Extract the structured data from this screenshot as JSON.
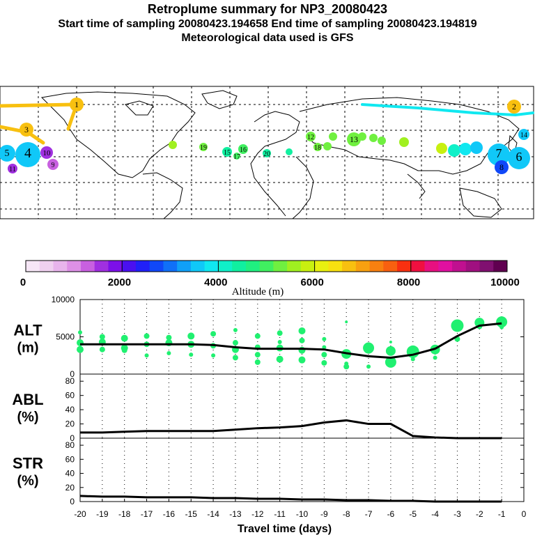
{
  "header": {
    "title": "Retroplume summary for NP3_20080423",
    "sampling": "Start time of sampling 20080423.194658     End time of sampling 20080423.194819",
    "met": "Meteorological data used is GFS"
  },
  "colorbar": {
    "ticks": [
      "0",
      "2000",
      "4000",
      "6000",
      "8000",
      "10000"
    ],
    "label": "Altitude (m)",
    "colors": [
      "#f6e6f6",
      "#f0d0f0",
      "#e8b4ec",
      "#dd90e6",
      "#c860e0",
      "#a030e0",
      "#7c10e8",
      "#4a10f0",
      "#2020f8",
      "#1048f8",
      "#1070f8",
      "#10a0f8",
      "#10c8f8",
      "#10e8f0",
      "#10f0c8",
      "#10f0a0",
      "#20f080",
      "#40f060",
      "#70f040",
      "#a0f020",
      "#c8f010",
      "#e8f010",
      "#f8e010",
      "#f8c010",
      "#f8a010",
      "#f88010",
      "#f86010",
      "#f83010",
      "#f01040",
      "#e81080",
      "#e010a0",
      "#c01090",
      "#a01080",
      "#801070",
      "#600050"
    ]
  },
  "map": {
    "labels": [
      {
        "t": "1",
        "c": "#f8c010"
      },
      {
        "t": "2",
        "c": "#f8c010"
      },
      {
        "t": "3",
        "c": "#f8c010"
      },
      {
        "t": "4",
        "c": "#10c8f8"
      },
      {
        "t": "5",
        "c": "#10c8f8"
      },
      {
        "t": "6",
        "c": "#10c8f8"
      },
      {
        "t": "7",
        "c": "#10c8f8"
      },
      {
        "t": "8",
        "c": "#1048f8"
      },
      {
        "t": "9",
        "c": "#c860e0"
      },
      {
        "t": "10",
        "c": "#a030e0"
      },
      {
        "t": "11",
        "c": "#a030e0"
      },
      {
        "t": "12",
        "c": "#70f040"
      },
      {
        "t": "13",
        "c": "#70f040"
      },
      {
        "t": "14",
        "c": "#10c8f8"
      },
      {
        "t": "15",
        "c": "#10f0a0"
      },
      {
        "t": "16",
        "c": "#40f060"
      },
      {
        "t": "17",
        "c": "#40f060"
      },
      {
        "t": "18",
        "c": "#70f040"
      },
      {
        "t": "19",
        "c": "#70f040"
      },
      {
        "t": "20",
        "c": "#10f0a0"
      }
    ]
  },
  "chart_data": [
    {
      "type": "line",
      "panel": "ALT",
      "ylabel": "ALT",
      "yunit": "(m)",
      "ylim": [
        0,
        10000
      ],
      "yticks": [
        "0",
        "5000",
        "10000"
      ],
      "x": [
        -20,
        -19,
        -18,
        -17,
        -16,
        -15,
        -14,
        -13,
        -12,
        -11,
        -10,
        -9,
        -8,
        -7,
        -6,
        -5,
        -4,
        -3,
        -2,
        -1
      ],
      "series": [
        {
          "name": "mean altitude",
          "values": [
            4000,
            4000,
            4000,
            4000,
            4000,
            4000,
            3900,
            3600,
            3400,
            3400,
            3400,
            3300,
            2800,
            2400,
            2200,
            2600,
            3400,
            5100,
            6500,
            6800
          ]
        }
      ],
      "scatter": [
        {
          "x": -20,
          "y": 5600,
          "s": 3
        },
        {
          "x": -20,
          "y": 4200,
          "s": 5
        },
        {
          "x": -20,
          "y": 3300,
          "s": 5
        },
        {
          "x": -19,
          "y": 5000,
          "s": 4
        },
        {
          "x": -19,
          "y": 4300,
          "s": 5
        },
        {
          "x": -19,
          "y": 3300,
          "s": 4
        },
        {
          "x": -18,
          "y": 4800,
          "s": 5
        },
        {
          "x": -18,
          "y": 3500,
          "s": 5
        },
        {
          "x": -18,
          "y": 3200,
          "s": 4
        },
        {
          "x": -17,
          "y": 5100,
          "s": 4
        },
        {
          "x": -17,
          "y": 4000,
          "s": 4
        },
        {
          "x": -17,
          "y": 2500,
          "s": 3
        },
        {
          "x": -16,
          "y": 4900,
          "s": 4
        },
        {
          "x": -16,
          "y": 4200,
          "s": 5
        },
        {
          "x": -16,
          "y": 2800,
          "s": 3
        },
        {
          "x": -15,
          "y": 5100,
          "s": 5
        },
        {
          "x": -15,
          "y": 4000,
          "s": 5
        },
        {
          "x": -15,
          "y": 2600,
          "s": 3
        },
        {
          "x": -14,
          "y": 5400,
          "s": 4
        },
        {
          "x": -14,
          "y": 3800,
          "s": 4
        },
        {
          "x": -14,
          "y": 2500,
          "s": 3
        },
        {
          "x": -13,
          "y": 5900,
          "s": 3
        },
        {
          "x": -13,
          "y": 4200,
          "s": 4
        },
        {
          "x": -13,
          "y": 3300,
          "s": 5
        },
        {
          "x": -13,
          "y": 2200,
          "s": 4
        },
        {
          "x": -12,
          "y": 5100,
          "s": 4
        },
        {
          "x": -12,
          "y": 3600,
          "s": 4
        },
        {
          "x": -12,
          "y": 2600,
          "s": 4
        },
        {
          "x": -12,
          "y": 1600,
          "s": 4
        },
        {
          "x": -11,
          "y": 5500,
          "s": 4
        },
        {
          "x": -11,
          "y": 4300,
          "s": 3
        },
        {
          "x": -11,
          "y": 3500,
          "s": 5
        },
        {
          "x": -11,
          "y": 2000,
          "s": 5
        },
        {
          "x": -10,
          "y": 5800,
          "s": 5
        },
        {
          "x": -10,
          "y": 4500,
          "s": 4
        },
        {
          "x": -10,
          "y": 3200,
          "s": 5
        },
        {
          "x": -10,
          "y": 1900,
          "s": 5
        },
        {
          "x": -9,
          "y": 4700,
          "s": 3
        },
        {
          "x": -9,
          "y": 3600,
          "s": 3
        },
        {
          "x": -9,
          "y": 2600,
          "s": 4
        },
        {
          "x": -9,
          "y": 1500,
          "s": 4
        },
        {
          "x": -8,
          "y": 7000,
          "s": 2
        },
        {
          "x": -8,
          "y": 2700,
          "s": 7
        },
        {
          "x": -8,
          "y": 1400,
          "s": 3
        },
        {
          "x": -8,
          "y": 1000,
          "s": 4
        },
        {
          "x": -7,
          "y": 3500,
          "s": 8
        },
        {
          "x": -7,
          "y": 1000,
          "s": 3
        },
        {
          "x": -6,
          "y": 4300,
          "s": 2
        },
        {
          "x": -6,
          "y": 3100,
          "s": 7
        },
        {
          "x": -6,
          "y": 1600,
          "s": 8
        },
        {
          "x": -5,
          "y": 3000,
          "s": 9
        },
        {
          "x": -5,
          "y": 2000,
          "s": 3
        },
        {
          "x": -4,
          "y": 3300,
          "s": 7
        },
        {
          "x": -4,
          "y": 2200,
          "s": 3
        },
        {
          "x": -3,
          "y": 6500,
          "s": 9
        },
        {
          "x": -3,
          "y": 4700,
          "s": 4
        },
        {
          "x": -2,
          "y": 6900,
          "s": 7
        },
        {
          "x": -2,
          "y": 6400,
          "s": 4
        },
        {
          "x": -1,
          "y": 7000,
          "s": 8
        },
        {
          "x": -1,
          "y": 6300,
          "s": 3
        }
      ]
    },
    {
      "type": "line",
      "panel": "ABL",
      "ylabel": "ABL",
      "yunit": "(%)",
      "ylim": [
        0,
        90
      ],
      "yticks": [
        "0",
        "20",
        "40",
        "60",
        "80"
      ],
      "x": [
        -20,
        -19,
        -18,
        -17,
        -16,
        -15,
        -14,
        -13,
        -12,
        -11,
        -10,
        -9,
        -8,
        -7,
        -6,
        -5,
        -4,
        -3,
        -2,
        -1
      ],
      "series": [
        {
          "name": "ABL fraction",
          "values": [
            8,
            8,
            9,
            10,
            10,
            10,
            10,
            12,
            14,
            15,
            17,
            22,
            25,
            20,
            20,
            3,
            1,
            0,
            0,
            0
          ]
        }
      ]
    },
    {
      "type": "line",
      "panel": "STR",
      "ylabel": "STR",
      "yunit": "(%)",
      "ylim": [
        0,
        90
      ],
      "yticks": [
        "0",
        "20",
        "40",
        "60",
        "80"
      ],
      "x": [
        -20,
        -19,
        -18,
        -17,
        -16,
        -15,
        -14,
        -13,
        -12,
        -11,
        -10,
        -9,
        -8,
        -7,
        -6,
        -5,
        -4,
        -3,
        -2,
        -1
      ],
      "series": [
        {
          "name": "stratospheric fraction",
          "values": [
            8,
            7,
            7,
            6,
            6,
            6,
            5,
            5,
            4,
            4,
            3,
            3,
            2,
            2,
            1,
            1,
            0,
            0,
            0,
            0
          ]
        }
      ],
      "xlabel": "Travel time (days)",
      "xticks": [
        "-20",
        "-19",
        "-18",
        "-17",
        "-16",
        "-15",
        "-14",
        "-13",
        "-12",
        "-11",
        "-10",
        "-9",
        "-8",
        "-7",
        "-6",
        "-5",
        "-4",
        "-3",
        "-2",
        "-1",
        "0"
      ]
    }
  ]
}
